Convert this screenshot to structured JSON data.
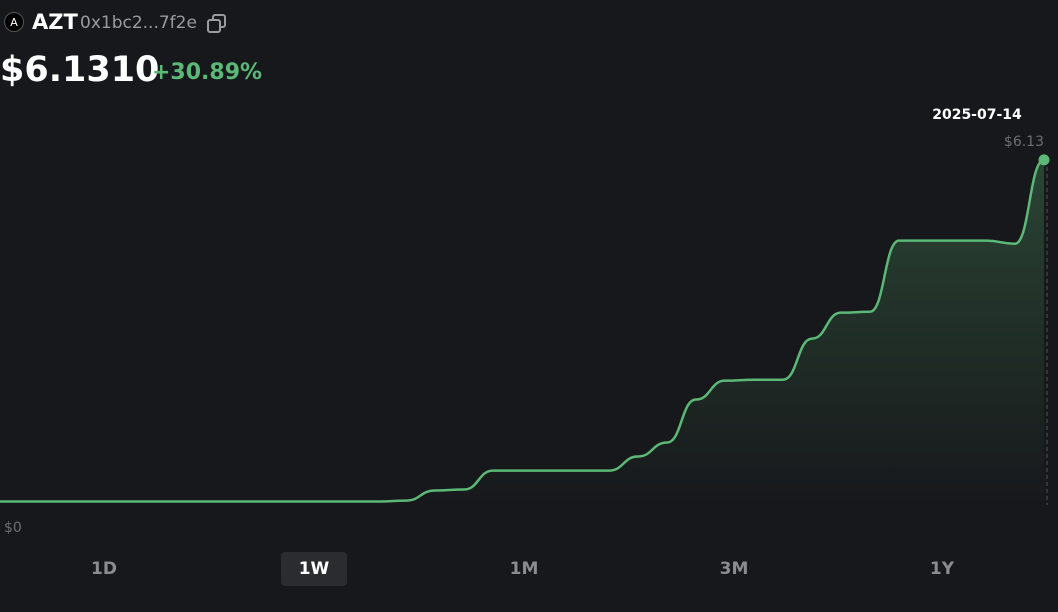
{
  "header": {
    "symbol": "AZT",
    "address": "0x1bc2...7f2e",
    "price": "$6.1310",
    "change": "+30.89%"
  },
  "chart_data": {
    "type": "line",
    "color": "#5cb876",
    "values": [
      4.684,
      4.684,
      4.684,
      4.684,
      4.684,
      4.684,
      4.684,
      4.684,
      4.684,
      4.684,
      4.684,
      4.684,
      4.684,
      4.684,
      4.688,
      4.731,
      4.735,
      4.815,
      4.815,
      4.815,
      4.815,
      4.815,
      4.875,
      4.934,
      5.116,
      5.196,
      5.2,
      5.2,
      5.374,
      5.484,
      5.488,
      5.789,
      5.789,
      5.789,
      5.789,
      5.776,
      6.131
    ],
    "ylim": [
      4.5,
      6.3
    ],
    "bottom_label": "$0",
    "last_date": "2025-07-14",
    "last_value_label": "$6.13"
  },
  "tabs": [
    {
      "label": "1D",
      "active": false
    },
    {
      "label": "1W",
      "active": true
    },
    {
      "label": "1M",
      "active": false
    },
    {
      "label": "3M",
      "active": false
    },
    {
      "label": "1Y",
      "active": false
    }
  ]
}
